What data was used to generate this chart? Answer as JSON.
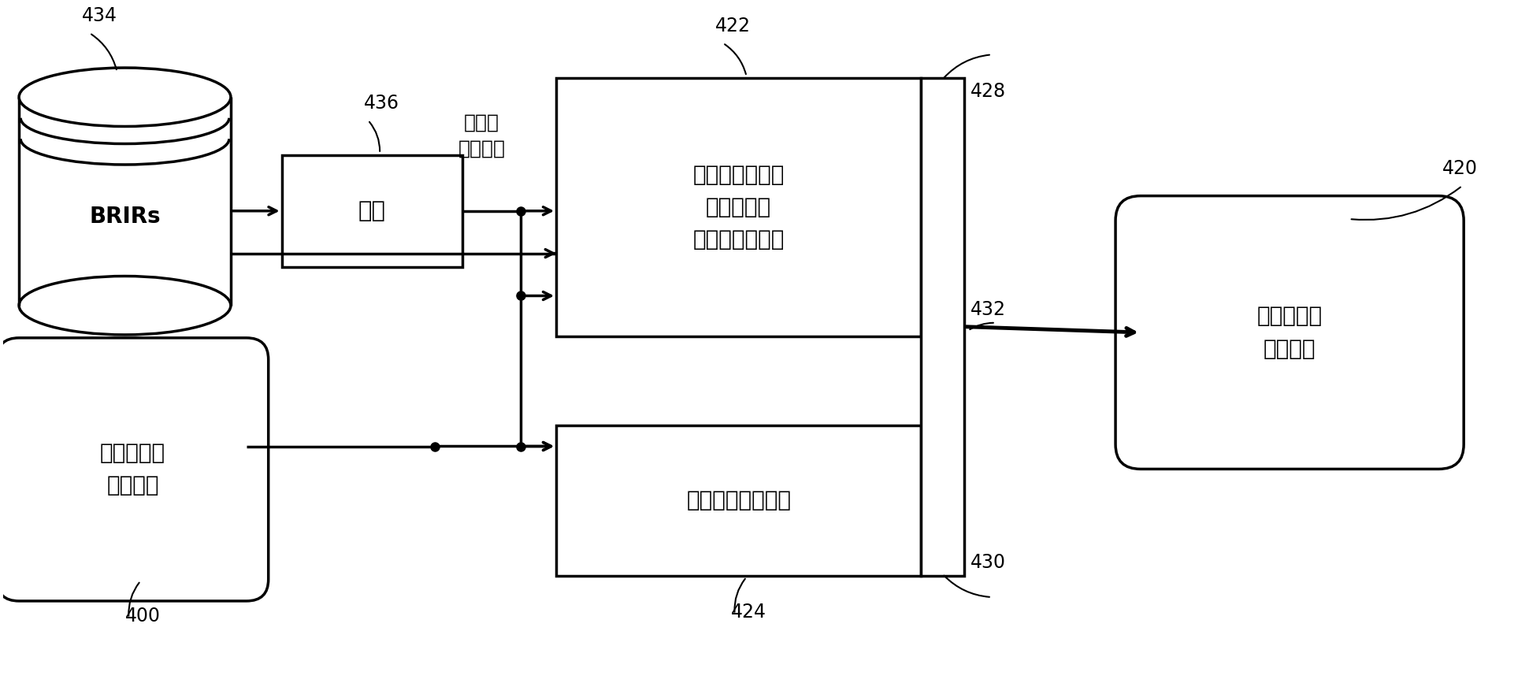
{
  "bg_color": "#ffffff",
  "line_color": "#000000",
  "fig_width": 19.41,
  "fig_height": 8.67,
  "labels": {
    "brirs": "BRIRs",
    "analysis": "分析",
    "early": "早期部分的处理\n（直达声音\n和早期反射音）",
    "late": "后期混响音的处理",
    "output": "两声道音频\n输出信号",
    "input": "多声道音频\n输入信号",
    "transition": "过渡、\n混响特征"
  },
  "numbers": {
    "brirs": "434",
    "analysis": "436",
    "early": "422",
    "late": "424",
    "output": "420",
    "input": "400",
    "n428": "428",
    "n430": "430",
    "n432": "432"
  }
}
